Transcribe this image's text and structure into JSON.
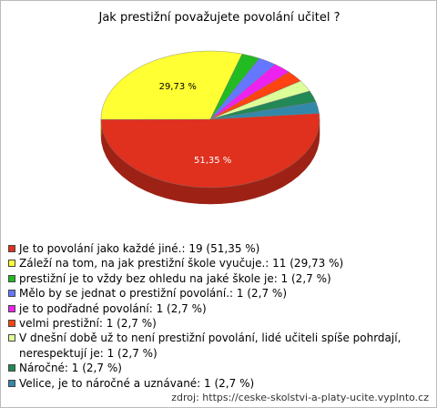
{
  "chart_data": {
    "type": "pie",
    "title": "Jak prestižní považujete povolání učitel ?",
    "categories": [
      "Je to povolání jako každé jiné.: 19 (51,35 %)",
      "Záleží na tom, na jak prestižní škole vyučuje.: 11 (29,73 %)",
      "prestižní je to vždy bez ohledu na jaké škole je: 1 (2,7 %)",
      "Mělo by se jednat o prestižní povolání.: 1 (2,7 %)",
      "je to podřadné povolání: 1 (2,7 %)",
      "velmi prestižní: 1 (2,7 %)",
      "V dnešní době už to není prestižní povolání, lidé učiteli spíše pohrdají, nerespektují je: 1 (2,7 %)",
      "Náročné: 1 (2,7 %)",
      "Velice, je to náročné a uznávané: 1 (2,7 %)"
    ],
    "values": [
      51.35,
      29.73,
      2.7,
      2.7,
      2.7,
      2.7,
      2.7,
      2.7,
      2.7
    ],
    "value_labels": [
      "51,35 %",
      "29,73 %",
      null,
      null,
      null,
      null,
      null,
      null,
      null
    ],
    "colors": [
      "#e0301e",
      "#ffff33",
      "#22bb22",
      "#6677ff",
      "#ee22ee",
      "#ff4411",
      "#ddff99",
      "#228855",
      "#3388aa"
    ],
    "source": "zdroj: https://ceske-skolstvi-a-platy-ucite.vyplnto.cz"
  }
}
